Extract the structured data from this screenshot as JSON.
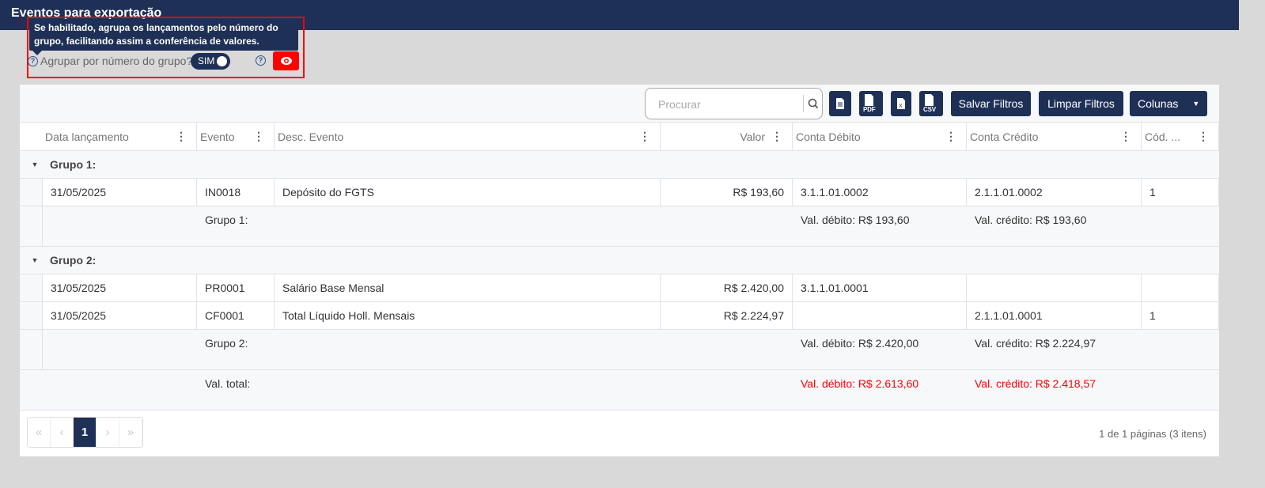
{
  "header": {
    "title": "Eventos para exportação"
  },
  "tooltip": {
    "text": "Se habilitado, agrupa os lançamentos pelo número do grupo, facilitando assim a conferência de valores."
  },
  "group_toggle": {
    "label": "Agrupar por número do grupo?",
    "value": "SIM",
    "enabled": true
  },
  "colors": {
    "navy": "#1f3057",
    "highlight": "#ff0000",
    "total_text": "#ff0000"
  },
  "toolbar": {
    "search_placeholder": "Procurar",
    "buttons": {
      "export_txt": "txt",
      "export_pdf": "PDF",
      "export_xls": "X",
      "export_csv": "CSV"
    },
    "save_filters": "Salvar Filtros",
    "clear_filters": "Limpar Filtros",
    "columns": "Colunas"
  },
  "columns": [
    "Data lançamento",
    "Evento",
    "Desc. Evento",
    "Valor",
    "Conta Débito",
    "Conta Crédito",
    "Cód. ..."
  ],
  "groups": [
    {
      "title": "Grupo 1:",
      "rows": [
        [
          "31/05/2025",
          "IN0018",
          "Depósito do FGTS",
          "R$ 193,60",
          "3.1.1.01.0002",
          "2.1.1.01.0002",
          "1"
        ]
      ],
      "subtotal": {
        "label": "Grupo 1:",
        "debit": "Val. débito: R$ 193,60",
        "credit": "Val. crédito: R$ 193,60"
      }
    },
    {
      "title": "Grupo 2:",
      "rows": [
        [
          "31/05/2025",
          "PR0001",
          "Salário Base Mensal",
          "R$ 2.420,00",
          "3.1.1.01.0001",
          "",
          ""
        ],
        [
          "31/05/2025",
          "CF0001",
          "Total Líquido Holl. Mensais",
          "R$ 2.224,97",
          "",
          "2.1.1.01.0001",
          "1"
        ]
      ],
      "subtotal": {
        "label": "Grupo 2:",
        "debit": "Val. débito: R$ 2.420,00",
        "credit": "Val. crédito: R$ 2.224,97"
      }
    }
  ],
  "total": {
    "label": "Val. total:",
    "debit": "Val. débito: R$ 2.613,60",
    "credit": "Val. crédito: R$ 2.418,57"
  },
  "pagination": {
    "first": "«",
    "prev": "‹",
    "current": "1",
    "next": "›",
    "last": "»",
    "info": "1 de 1 páginas (3 itens)"
  }
}
